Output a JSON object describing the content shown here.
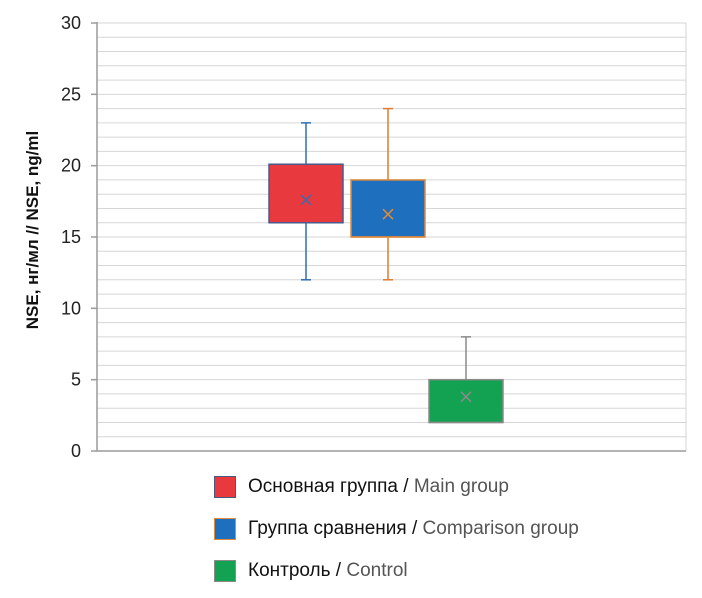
{
  "chart_data": {
    "type": "boxplot",
    "ylabel": "NSE, нг/мл // NSE, ng/ml",
    "ylim": [
      0,
      30
    ],
    "yticks": [
      0,
      5,
      10,
      15,
      20,
      25,
      30
    ],
    "minor_step": 1,
    "grid": true,
    "legend_position": "bottom",
    "series": [
      {
        "name_ru": "Основная группа",
        "separator": " / ",
        "name_en": "Main group",
        "min": 12,
        "q1": 16,
        "median": 16,
        "q3": 20.1,
        "max": 23,
        "mean": 17.6,
        "fill": "#e8393e",
        "border": "#4a5a8a",
        "whisker": "#2e6fb0",
        "marker": "#3a6ab0"
      },
      {
        "name_ru": "Группа сравнения",
        "separator": " / ",
        "name_en": "Comparison group",
        "min": 12,
        "q1": 15,
        "median": 15,
        "q3": 19,
        "max": 24,
        "mean": 16.6,
        "fill": "#1f6fbf",
        "border": "#e08a3a",
        "whisker": "#e07a30",
        "marker": "#e08a3a"
      },
      {
        "name_ru": "Контроль",
        "separator": " / ",
        "name_en": "Control",
        "min": 2,
        "q1": 2,
        "median": 2,
        "q3": 5,
        "max": 8,
        "mean": 3.8,
        "fill": "#12a251",
        "border": "#8a8a8a",
        "whisker": "#8a8a8a",
        "marker": "#8a8a8a"
      }
    ]
  }
}
